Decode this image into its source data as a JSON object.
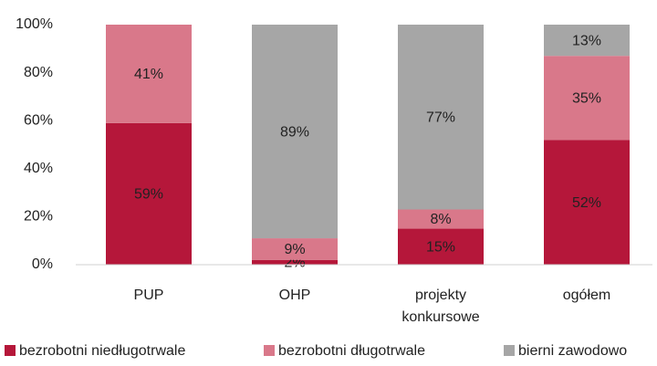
{
  "chart_data": {
    "type": "stacked_bar",
    "categories": [
      "PUP",
      "OHP",
      "projekty konkursowe",
      "ogółem"
    ],
    "series": [
      {
        "name": "bezrobotni niedługotrwale",
        "color": "#b5173a",
        "values": [
          59,
          2,
          15,
          52
        ],
        "value_labels": [
          "59%",
          "2%",
          "15%",
          "52%"
        ]
      },
      {
        "name": "bezrobotni długotrwale",
        "color": "#d9788a",
        "values": [
          41,
          9,
          8,
          35
        ],
        "value_labels": [
          "41%",
          "9%",
          "8%",
          "35%"
        ]
      },
      {
        "name": "bierni zawodowo",
        "color": "#a6a6a6",
        "values": [
          0,
          89,
          77,
          13
        ],
        "value_labels": [
          null,
          "89%",
          "77%",
          "13%"
        ]
      }
    ],
    "ylim": [
      0,
      100
    ],
    "yticks": [
      {
        "value": 0,
        "label": "0%"
      },
      {
        "value": 20,
        "label": "20%"
      },
      {
        "value": 40,
        "label": "40%"
      },
      {
        "value": 60,
        "label": "60%"
      },
      {
        "value": 80,
        "label": "80%"
      },
      {
        "value": 100,
        "label": "100%"
      }
    ],
    "legend": "bottom"
  }
}
